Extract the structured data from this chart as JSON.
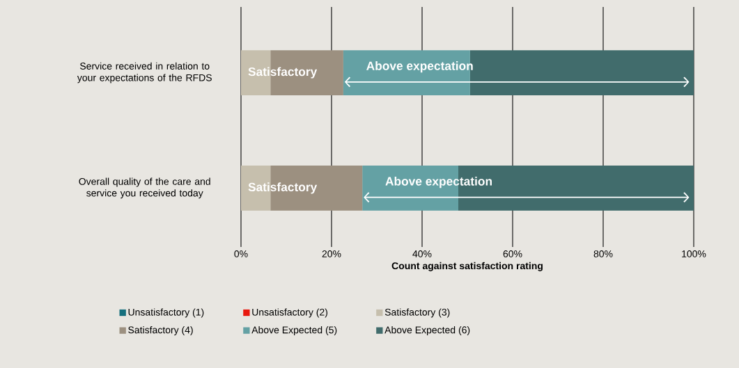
{
  "chart_data": {
    "type": "bar",
    "orientation": "horizontal",
    "stacked": true,
    "categories": [
      "Service received in relation to your expectations of the RFDS",
      "Overall quality of the care and service you received today"
    ],
    "series": [
      {
        "name": "Unsatisfactory (1)",
        "color": "#16707e",
        "values": [
          0,
          0
        ]
      },
      {
        "name": "Unsatisfactory (2)",
        "color": "#e8190f",
        "values": [
          0,
          0
        ]
      },
      {
        "name": "Satisfactory (3)",
        "color": "#c6bfad",
        "values": [
          6.5,
          6.5
        ]
      },
      {
        "name": "Satisfactory (4)",
        "color": "#9c9080",
        "values": [
          16.1,
          20.3
        ]
      },
      {
        "name": "Above Expected (5)",
        "color": "#64a1a4",
        "values": [
          28,
          21.2
        ]
      },
      {
        "name": "Above Expected (6)",
        "color": "#416c6c",
        "values": [
          49.4,
          52
        ]
      }
    ],
    "xlabel": "Count against satisfaction rating",
    "xlim": [
      0,
      100
    ],
    "xticks": [
      {
        "value": 0,
        "label": "0%"
      },
      {
        "value": 20,
        "label": "20%"
      },
      {
        "value": 40,
        "label": "40%"
      },
      {
        "value": 60,
        "label": "60%"
      },
      {
        "value": 80,
        "label": "80%"
      },
      {
        "value": 100,
        "label": "100%"
      }
    ],
    "grid": "x",
    "legend": "bottom",
    "annotations": [
      "Satisfactory",
      "Above expectation",
      "Satisfactory",
      "Above expectation"
    ]
  }
}
